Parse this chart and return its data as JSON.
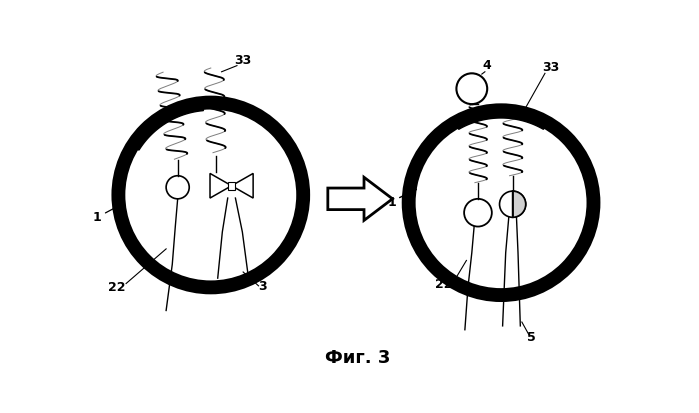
{
  "fig_width": 6.99,
  "fig_height": 4.14,
  "dpi": 100,
  "bg_color": "#ffffff",
  "caption": "Фиг. 3"
}
